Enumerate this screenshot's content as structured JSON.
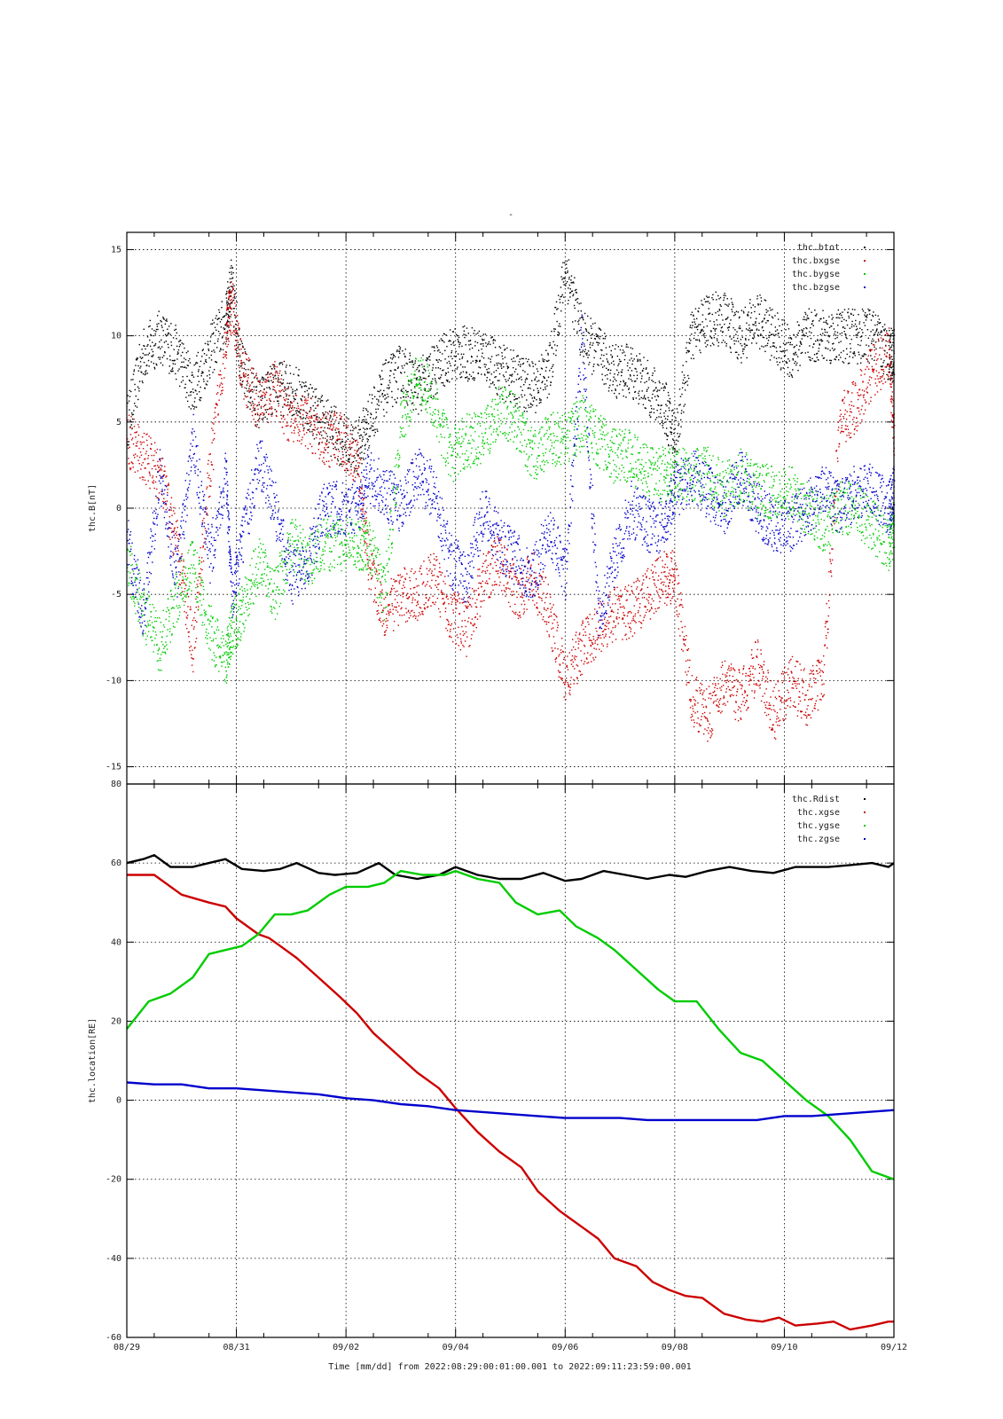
{
  "page": {
    "title": "-"
  },
  "footer": {
    "time_label": "Time [mm/dd]  from 2022:08:29:00:01:00.001  to  2022:09:11:23:59:00.001"
  },
  "colors": {
    "black": "#000000",
    "red": "#cc0000",
    "green": "#00cc00",
    "blue": "#0000cc"
  },
  "x_axis": {
    "ticks": [
      {
        "label": "08/29",
        "day": 0
      },
      {
        "label": "08/31",
        "day": 2
      },
      {
        "label": "09/02",
        "day": 4
      },
      {
        "label": "09/04",
        "day": 6
      },
      {
        "label": "09/06",
        "day": 8
      },
      {
        "label": "09/08",
        "day": 10
      },
      {
        "label": "09/10",
        "day": 12
      },
      {
        "label": "09/12",
        "day": 14
      }
    ]
  },
  "chart_data": [
    {
      "type": "scatter",
      "ylabel": "thc.B[nT]",
      "ylim": [
        -16,
        16
      ],
      "yticks": [
        -15,
        -10,
        -5,
        0,
        5,
        10,
        15
      ],
      "grid": true,
      "legend_position": "top-right",
      "series": [
        {
          "name": "thc.btot",
          "color": "#000000",
          "x": [
            0,
            0.3,
            0.6,
            0.9,
            1.2,
            1.5,
            1.8,
            1.9,
            2.1,
            2.4,
            2.7,
            3.0,
            3.3,
            3.6,
            3.9,
            4.2,
            4.4,
            4.7,
            5.0,
            5.3,
            5.6,
            5.9,
            6.2,
            6.5,
            6.8,
            7.1,
            7.4,
            7.7,
            8.0,
            8.3,
            8.6,
            8.9,
            9.2,
            9.5,
            9.8,
            10.0,
            10.3,
            10.6,
            10.9,
            11.2,
            11.5,
            11.8,
            12.1,
            12.4,
            12.7,
            13.0,
            13.3,
            13.6,
            13.9,
            14.0
          ],
          "y": [
            5,
            9,
            10,
            9,
            7,
            9,
            11,
            13,
            8,
            6,
            7,
            7,
            6,
            5,
            4,
            3.5,
            5,
            7,
            8,
            7,
            8,
            9,
            9,
            9,
            8,
            7.5,
            7,
            8,
            14,
            10,
            9,
            8,
            8,
            7,
            6,
            4,
            10,
            11,
            11,
            10,
            11,
            10,
            9,
            10,
            10,
            10,
            10,
            10,
            9,
            9
          ]
        },
        {
          "name": "thc.bxgse",
          "color": "#cc0000",
          "x": [
            0,
            0.3,
            0.6,
            0.9,
            1.2,
            1.5,
            1.8,
            1.9,
            2.1,
            2.4,
            2.7,
            3.0,
            3.3,
            3.6,
            3.9,
            4.2,
            4.4,
            4.7,
            5.0,
            5.3,
            5.6,
            5.9,
            6.2,
            6.5,
            6.8,
            7.1,
            7.4,
            7.7,
            8.0,
            8.3,
            8.6,
            8.9,
            9.2,
            9.5,
            9.8,
            10.0,
            10.3,
            10.6,
            10.9,
            11.2,
            11.5,
            11.8,
            12.1,
            12.4,
            12.7,
            13.0,
            13.3,
            13.6,
            13.9,
            14.0
          ],
          "y": [
            4,
            3,
            2,
            -2,
            -8,
            2,
            10,
            12,
            8,
            6,
            7,
            5,
            5,
            4,
            4,
            3,
            -3,
            -6,
            -5,
            -5,
            -4,
            -6,
            -7,
            -4,
            -3,
            -5,
            -4,
            -6,
            -10,
            -8,
            -7,
            -6,
            -6,
            -5,
            -4,
            -4,
            -11,
            -12,
            -10,
            -11,
            -9,
            -12,
            -10,
            -11,
            -10,
            5,
            6,
            8,
            9,
            4
          ]
        },
        {
          "name": "thc.bygse",
          "color": "#00cc00",
          "x": [
            0,
            0.3,
            0.6,
            0.9,
            1.2,
            1.5,
            1.8,
            1.9,
            2.1,
            2.4,
            2.7,
            3.0,
            3.3,
            3.6,
            3.9,
            4.2,
            4.4,
            4.7,
            5.0,
            5.3,
            5.6,
            5.9,
            6.2,
            6.5,
            6.8,
            7.1,
            7.4,
            7.7,
            8.0,
            8.3,
            8.6,
            8.9,
            9.2,
            9.5,
            9.8,
            10.0,
            10.3,
            10.6,
            10.9,
            11.2,
            11.5,
            11.8,
            12.1,
            12.4,
            12.7,
            13.0,
            13.3,
            13.6,
            13.9,
            14.0
          ],
          "y": [
            -3,
            -6,
            -8,
            -5,
            -3,
            -7,
            -9,
            -7,
            -6,
            -3,
            -5,
            -2,
            -3,
            -2,
            -2,
            -2,
            -2,
            -5,
            5,
            8,
            6,
            3,
            4,
            4,
            6,
            5,
            3,
            4,
            4,
            5,
            4,
            3,
            3,
            2,
            2,
            2,
            2,
            2,
            1,
            2,
            1,
            1,
            1,
            0,
            -1,
            0,
            0,
            -1,
            -2,
            -1
          ]
        },
        {
          "name": "thc.bzgse",
          "color": "#0000cc",
          "x": [
            0,
            0.3,
            0.6,
            0.9,
            1.2,
            1.5,
            1.8,
            1.9,
            2.1,
            2.4,
            2.7,
            3.0,
            3.3,
            3.6,
            3.9,
            4.2,
            4.4,
            4.7,
            5.0,
            5.3,
            5.6,
            5.9,
            6.2,
            6.5,
            6.8,
            7.1,
            7.4,
            7.7,
            8.0,
            8.3,
            8.6,
            8.9,
            9.2,
            9.5,
            9.8,
            10.0,
            10.3,
            10.6,
            10.9,
            11.2,
            11.5,
            11.8,
            12.1,
            12.4,
            12.7,
            13.0,
            13.3,
            13.6,
            13.9,
            14.0
          ],
          "y": [
            -2,
            -6,
            2,
            -4,
            4,
            -3,
            2,
            -5,
            -2,
            3,
            0,
            -4,
            -3,
            0,
            0,
            0,
            2,
            1,
            0,
            2,
            1,
            -3,
            -4,
            0,
            -2,
            -3,
            -4,
            -1,
            -4,
            10,
            -6,
            -3,
            0,
            -1,
            -1,
            1,
            2,
            1,
            0,
            2,
            0,
            -1,
            -1,
            0,
            1,
            0,
            1,
            1,
            0,
            1
          ]
        }
      ]
    },
    {
      "type": "line",
      "ylabel": "thc.location[RE]",
      "ylim": [
        -60,
        80
      ],
      "yticks": [
        -60,
        -40,
        -20,
        0,
        20,
        40,
        60,
        80
      ],
      "grid": true,
      "legend_position": "top-right",
      "series": [
        {
          "name": "thc.Rdist",
          "color": "#000000",
          "x": [
            0,
            0.3,
            0.5,
            0.8,
            1.2,
            1.5,
            1.8,
            2.1,
            2.5,
            2.8,
            3.1,
            3.5,
            3.8,
            4.2,
            4.6,
            4.9,
            5.3,
            5.7,
            6.0,
            6.4,
            6.8,
            7.2,
            7.6,
            8.0,
            8.3,
            8.7,
            9.1,
            9.5,
            9.9,
            10.2,
            10.6,
            11.0,
            11.4,
            11.8,
            12.2,
            12.6,
            12.8,
            13.2,
            13.6,
            13.9,
            14.0
          ],
          "y": [
            60,
            61,
            62,
            59,
            59,
            60,
            61,
            58.5,
            58,
            58.5,
            60,
            57.5,
            57,
            57.5,
            60,
            57,
            56,
            57,
            59,
            57,
            56,
            56,
            57.5,
            55.5,
            56,
            58,
            57,
            56,
            57,
            56.5,
            58,
            59,
            58,
            57.5,
            59,
            59,
            59,
            59.5,
            60,
            59,
            60
          ]
        },
        {
          "name": "thc.xgse",
          "color": "#cc0000",
          "x": [
            0,
            0.3,
            0.5,
            1.0,
            1.5,
            1.8,
            2.0,
            2.4,
            2.6,
            2.8,
            3.1,
            3.5,
            3.9,
            4.2,
            4.5,
            4.9,
            5.3,
            5.7,
            6.0,
            6.4,
            6.8,
            7.2,
            7.5,
            7.9,
            8.3,
            8.6,
            8.9,
            9.3,
            9.6,
            9.9,
            10.2,
            10.5,
            10.9,
            11.3,
            11.6,
            11.9,
            12.2,
            12.6,
            12.9,
            13.2,
            13.6,
            13.9,
            14.0
          ],
          "y": [
            57,
            57,
            57,
            52,
            50,
            49,
            46,
            42,
            41,
            39,
            36,
            31,
            26,
            22,
            17,
            12,
            7,
            3,
            -2,
            -8,
            -13,
            -17,
            -23,
            -28,
            -32,
            -35,
            -40,
            -42,
            -46,
            -48,
            -49.5,
            -50,
            -54,
            -55.5,
            -56,
            -55,
            -57,
            -56.5,
            -56,
            -58,
            -57,
            -56,
            -56
          ]
        },
        {
          "name": "thc.ygse",
          "color": "#00cc00",
          "x": [
            0,
            0.4,
            0.8,
            1.2,
            1.5,
            1.8,
            2.1,
            2.4,
            2.7,
            3.0,
            3.3,
            3.7,
            4.0,
            4.4,
            4.7,
            5.0,
            5.4,
            5.8,
            6.0,
            6.4,
            6.8,
            7.1,
            7.5,
            7.9,
            8.2,
            8.6,
            8.9,
            9.3,
            9.7,
            10.0,
            10.4,
            10.8,
            11.2,
            11.6,
            12.0,
            12.4,
            12.8,
            13.2,
            13.6,
            14.0
          ],
          "y": [
            18,
            25,
            27,
            31,
            37,
            38,
            39,
            42,
            47,
            47,
            48,
            52,
            54,
            54,
            55,
            58,
            57,
            57,
            58,
            56,
            55,
            50,
            47,
            48,
            44,
            41,
            38,
            33,
            28,
            25,
            25,
            18,
            12,
            10,
            5,
            0,
            -4,
            -10,
            -18,
            -20
          ]
        },
        {
          "name": "thc.zgse",
          "color": "#0000cc",
          "x": [
            0,
            0.5,
            1.0,
            1.5,
            2.0,
            2.5,
            3.0,
            3.5,
            4.0,
            4.5,
            5.0,
            5.5,
            6.0,
            6.5,
            7.0,
            7.5,
            8.0,
            8.5,
            9.0,
            9.5,
            10.0,
            10.5,
            11.0,
            11.5,
            12.0,
            12.5,
            13.0,
            13.5,
            14.0
          ],
          "y": [
            4.5,
            4,
            4,
            3,
            3,
            2.5,
            2,
            1.5,
            0.5,
            0,
            -1,
            -1.5,
            -2.5,
            -3,
            -3.5,
            -4,
            -4.5,
            -4.5,
            -4.5,
            -5,
            -5,
            -5,
            -5,
            -5,
            -4,
            -4,
            -3.5,
            -3,
            -2.5
          ]
        }
      ]
    }
  ]
}
